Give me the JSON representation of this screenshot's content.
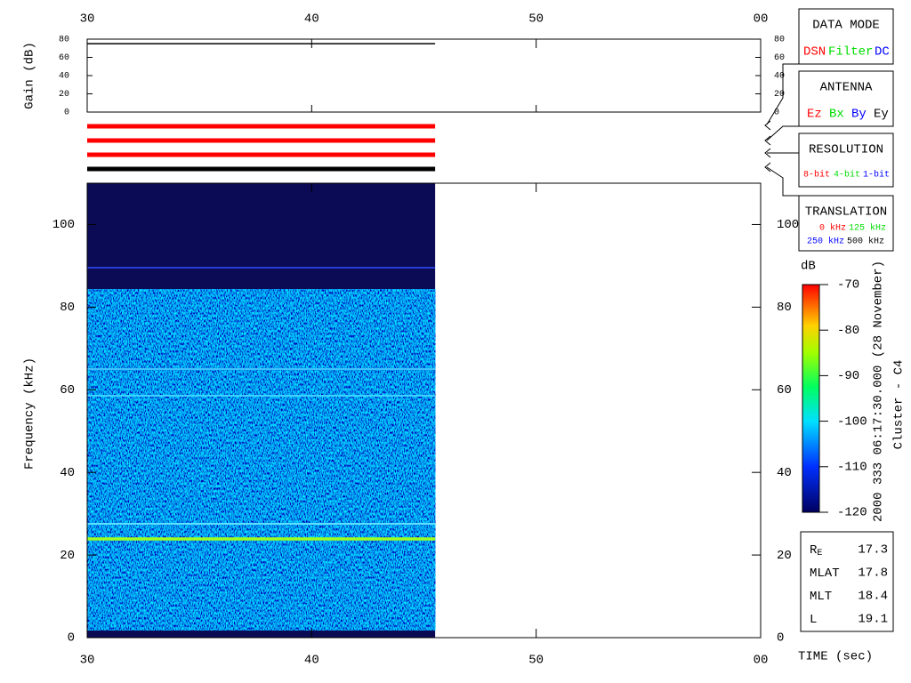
{
  "chart_data": {
    "type": "spectrogram",
    "ylabel": "Frequency (kHz)",
    "xlabel": "TIME (sec)",
    "xlim": [
      30,
      60
    ],
    "xticks": [
      30,
      40,
      50,
      {
        "value": 60,
        "label": "00"
      }
    ],
    "ylim": [
      0,
      110
    ],
    "yticks": [
      0,
      20,
      40,
      60,
      80,
      100
    ],
    "x": [
      30,
      45.5
    ],
    "gain": {
      "ylabel": "Gain (dB)",
      "ylim": [
        0,
        80
      ],
      "yticks": [
        0,
        20,
        40,
        60,
        80
      ],
      "values": [
        75,
        75
      ],
      "color": "#000000"
    },
    "colorbar": {
      "label": "dB",
      "lim": [
        -120,
        -70
      ],
      "ticks": [
        -70,
        -80,
        -90,
        -100,
        -110,
        -120
      ]
    },
    "caption": "2000 333 06:17:30.000 (28 November)",
    "mission": "Cluster - C4"
  },
  "panels": {
    "data_mode": {
      "title": "DATA MODE",
      "items": [
        "DSN",
        "Filter",
        "DC"
      ]
    },
    "antenna": {
      "title": "ANTENNA",
      "items": [
        "Ez",
        "Bx",
        "By",
        "Ey"
      ]
    },
    "resolution": {
      "title": "RESOLUTION",
      "items": [
        "8-bit",
        "4-bit",
        "1-bit"
      ]
    },
    "translation": {
      "title": "TRANSLATION",
      "items": [
        "0 kHz",
        "125 kHz",
        "250 kHz",
        "500 kHz"
      ]
    }
  },
  "ephemeris": [
    {
      "label": "R",
      "subscript": "E",
      "value": 17.3
    },
    {
      "label": "MLAT",
      "value": 17.8
    },
    {
      "label": "MLT",
      "value": 18.4
    },
    {
      "label": "L",
      "value": 19.1
    }
  ]
}
